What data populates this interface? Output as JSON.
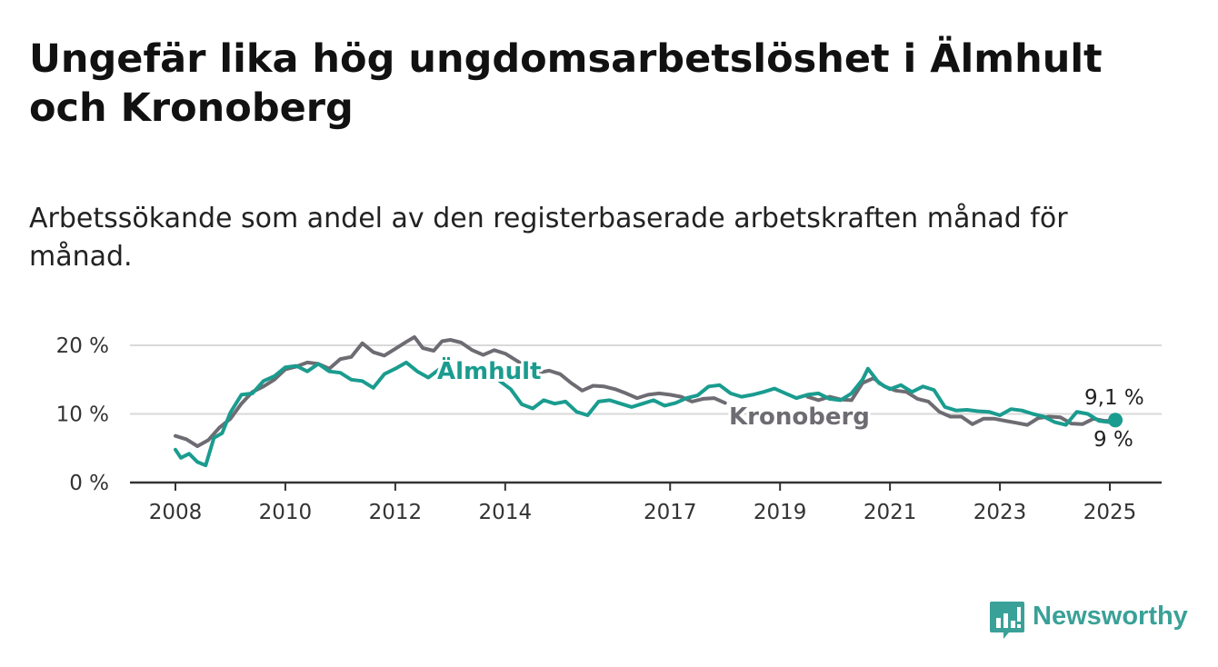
{
  "title": "Ungefär lika hög ungdomsarbetslöshet i Älmhult och Kronoberg",
  "subtitle": "Arbetssökande som andel av den registerbaserade arbetskraften månad för månad.",
  "brand": {
    "name": "Newsworthy",
    "icon": "newsworthy-chart-icon",
    "color": "#3aa198"
  },
  "chart_data": {
    "type": "line",
    "title": "Ungefär lika hög ungdomsarbetslöshet i Älmhult och Kronoberg",
    "subtitle": "Arbetssökande som andel av den registerbaserade arbetskraften månad för månad.",
    "xlabel": "",
    "ylabel": "",
    "xlim": [
      2008.0,
      2025.45
    ],
    "ylim": [
      0,
      20
    ],
    "grid": true,
    "x_ticks": [
      2008,
      2010,
      2012,
      2014,
      2017,
      2019,
      2021,
      2023,
      2025
    ],
    "x_tick_labels": [
      "2008",
      "2010",
      "2012",
      "2014",
      "2017",
      "2019",
      "2021",
      "2023",
      "2025"
    ],
    "y_ticks": [
      0,
      10,
      20
    ],
    "y_tick_labels": [
      "0 %",
      "10 %",
      "20 %"
    ],
    "series": [
      {
        "name": "Kronoberg",
        "color": "#6e6c72",
        "end_label": "9 %",
        "points": [
          [
            2008.0,
            6.8
          ],
          [
            2008.2,
            6.3
          ],
          [
            2008.4,
            5.3
          ],
          [
            2008.6,
            6.2
          ],
          [
            2008.8,
            8.0
          ],
          [
            2009.0,
            9.3
          ],
          [
            2009.2,
            11.5
          ],
          [
            2009.4,
            13.2
          ],
          [
            2009.6,
            14.0
          ],
          [
            2009.8,
            15.0
          ],
          [
            2010.0,
            16.5
          ],
          [
            2010.2,
            16.9
          ],
          [
            2010.4,
            17.5
          ],
          [
            2010.6,
            17.3
          ],
          [
            2010.8,
            16.6
          ],
          [
            2011.0,
            18.0
          ],
          [
            2011.2,
            18.3
          ],
          [
            2011.4,
            20.3
          ],
          [
            2011.6,
            19.0
          ],
          [
            2011.8,
            18.5
          ],
          [
            2012.0,
            19.5
          ],
          [
            2012.2,
            20.5
          ],
          [
            2012.35,
            21.2
          ],
          [
            2012.5,
            19.6
          ],
          [
            2012.7,
            19.2
          ],
          [
            2012.85,
            20.6
          ],
          [
            2013.0,
            20.8
          ],
          [
            2013.2,
            20.4
          ],
          [
            2013.4,
            19.3
          ],
          [
            2013.6,
            18.6
          ],
          [
            2013.8,
            19.3
          ],
          [
            2014.0,
            18.8
          ],
          [
            2014.2,
            17.8
          ],
          [
            2014.4,
            16.8
          ],
          [
            2014.6,
            16.0
          ],
          [
            2014.8,
            16.3
          ],
          [
            2015.0,
            15.8
          ],
          [
            2015.2,
            14.5
          ],
          [
            2015.4,
            13.4
          ],
          [
            2015.6,
            14.1
          ],
          [
            2015.8,
            14.0
          ],
          [
            2016.0,
            13.6
          ],
          [
            2016.2,
            13.0
          ],
          [
            2016.4,
            12.3
          ],
          [
            2016.6,
            12.8
          ],
          [
            2016.8,
            13.0
          ],
          [
            2017.0,
            12.8
          ],
          [
            2017.2,
            12.5
          ],
          [
            2017.4,
            11.8
          ],
          [
            2017.6,
            12.2
          ],
          [
            2017.8,
            12.3
          ],
          [
            2018.0,
            11.6
          ]
        ]
      },
      {
        "name": "Älmhult",
        "color": "#1a9c8f",
        "end_label": "9,1 %",
        "points": [
          [
            2008.0,
            4.8
          ],
          [
            2008.1,
            3.6
          ],
          [
            2008.25,
            4.2
          ],
          [
            2008.4,
            3.0
          ],
          [
            2008.55,
            2.5
          ],
          [
            2008.7,
            6.5
          ],
          [
            2008.85,
            7.2
          ],
          [
            2009.0,
            10.2
          ],
          [
            2009.2,
            12.8
          ],
          [
            2009.4,
            13.0
          ],
          [
            2009.6,
            14.8
          ],
          [
            2009.8,
            15.5
          ],
          [
            2010.0,
            16.8
          ],
          [
            2010.2,
            17.0
          ],
          [
            2010.4,
            16.2
          ],
          [
            2010.6,
            17.3
          ],
          [
            2010.8,
            16.2
          ],
          [
            2011.0,
            16.0
          ],
          [
            2011.2,
            15.0
          ],
          [
            2011.4,
            14.8
          ],
          [
            2011.6,
            13.8
          ],
          [
            2011.8,
            15.8
          ],
          [
            2012.0,
            16.6
          ],
          [
            2012.2,
            17.5
          ],
          [
            2012.4,
            16.2
          ],
          [
            2012.6,
            15.3
          ],
          [
            2012.8,
            16.5
          ],
          [
            2013.0,
            18.0
          ]
        ],
        "points_2": [
          [
            2013.9,
            14.8
          ],
          [
            2014.1,
            13.6
          ],
          [
            2014.3,
            11.4
          ],
          [
            2014.5,
            10.8
          ],
          [
            2014.7,
            12.0
          ],
          [
            2014.9,
            11.5
          ],
          [
            2015.1,
            11.8
          ],
          [
            2015.3,
            10.3
          ],
          [
            2015.5,
            9.8
          ],
          [
            2015.7,
            11.8
          ],
          [
            2015.9,
            12.0
          ],
          [
            2016.1,
            11.5
          ],
          [
            2016.3,
            11.0
          ],
          [
            2016.5,
            11.5
          ],
          [
            2016.7,
            12.0
          ],
          [
            2016.9,
            11.2
          ],
          [
            2017.1,
            11.6
          ],
          [
            2017.3,
            12.3
          ],
          [
            2017.5,
            12.7
          ],
          [
            2017.7,
            14.0
          ],
          [
            2017.9,
            14.2
          ],
          [
            2018.1,
            13.0
          ],
          [
            2018.3,
            12.5
          ],
          [
            2018.5,
            12.8
          ],
          [
            2018.7,
            13.2
          ],
          [
            2018.9,
            13.7
          ],
          [
            2019.1,
            13.0
          ],
          [
            2019.3,
            12.3
          ],
          [
            2019.5,
            12.8
          ],
          [
            2019.7,
            13.0
          ],
          [
            2019.9,
            12.2
          ],
          [
            2020.1,
            12.0
          ],
          [
            2020.3,
            13.0
          ],
          [
            2020.5,
            15.0
          ],
          [
            2020.6,
            16.6
          ],
          [
            2020.8,
            14.5
          ],
          [
            2021.0,
            13.6
          ],
          [
            2021.2,
            14.2
          ],
          [
            2021.4,
            13.2
          ],
          [
            2021.6,
            14.0
          ],
          [
            2021.8,
            13.5
          ],
          [
            2022.0,
            11.0
          ],
          [
            2022.2,
            10.5
          ],
          [
            2022.4,
            10.6
          ],
          [
            2022.6,
            10.4
          ],
          [
            2022.8,
            10.3
          ],
          [
            2023.0,
            9.8
          ],
          [
            2023.2,
            10.7
          ],
          [
            2023.4,
            10.5
          ],
          [
            2023.6,
            10.0
          ],
          [
            2023.8,
            9.6
          ],
          [
            2024.0,
            8.8
          ],
          [
            2024.2,
            8.4
          ],
          [
            2024.4,
            10.3
          ],
          [
            2024.6,
            10.0
          ],
          [
            2024.8,
            9.0
          ],
          [
            2025.0,
            8.8
          ],
          [
            2025.1,
            9.1
          ]
        ]
      },
      {
        "name": "Kronoberg",
        "color": "#6e6c72",
        "end_label": "9 %",
        "points": [
          [
            2019.5,
            12.5
          ],
          [
            2019.7,
            12.0
          ],
          [
            2019.9,
            12.5
          ],
          [
            2020.1,
            12.1
          ],
          [
            2020.3,
            12.0
          ],
          [
            2020.5,
            14.5
          ],
          [
            2020.7,
            15.2
          ],
          [
            2020.9,
            14.0
          ],
          [
            2021.1,
            13.4
          ],
          [
            2021.3,
            13.2
          ],
          [
            2021.5,
            12.2
          ],
          [
            2021.7,
            11.8
          ],
          [
            2021.9,
            10.3
          ],
          [
            2022.1,
            9.6
          ],
          [
            2022.3,
            9.6
          ],
          [
            2022.5,
            8.5
          ],
          [
            2022.7,
            9.3
          ],
          [
            2022.9,
            9.3
          ],
          [
            2023.1,
            9.0
          ],
          [
            2023.3,
            8.7
          ],
          [
            2023.5,
            8.4
          ],
          [
            2023.7,
            9.4
          ],
          [
            2023.9,
            9.6
          ],
          [
            2024.1,
            9.5
          ],
          [
            2024.3,
            8.6
          ],
          [
            2024.5,
            8.5
          ],
          [
            2024.7,
            9.3
          ],
          [
            2024.9,
            9.0
          ],
          [
            2025.1,
            9.0
          ]
        ]
      }
    ],
    "annotations": [
      {
        "text": "Älmhult",
        "series": "Älmhult"
      },
      {
        "text": "Kronoberg",
        "series": "Kronoberg"
      },
      {
        "text": "9,1 %",
        "series": "Älmhult"
      },
      {
        "text": "9 %",
        "series": "Kronoberg"
      }
    ]
  }
}
